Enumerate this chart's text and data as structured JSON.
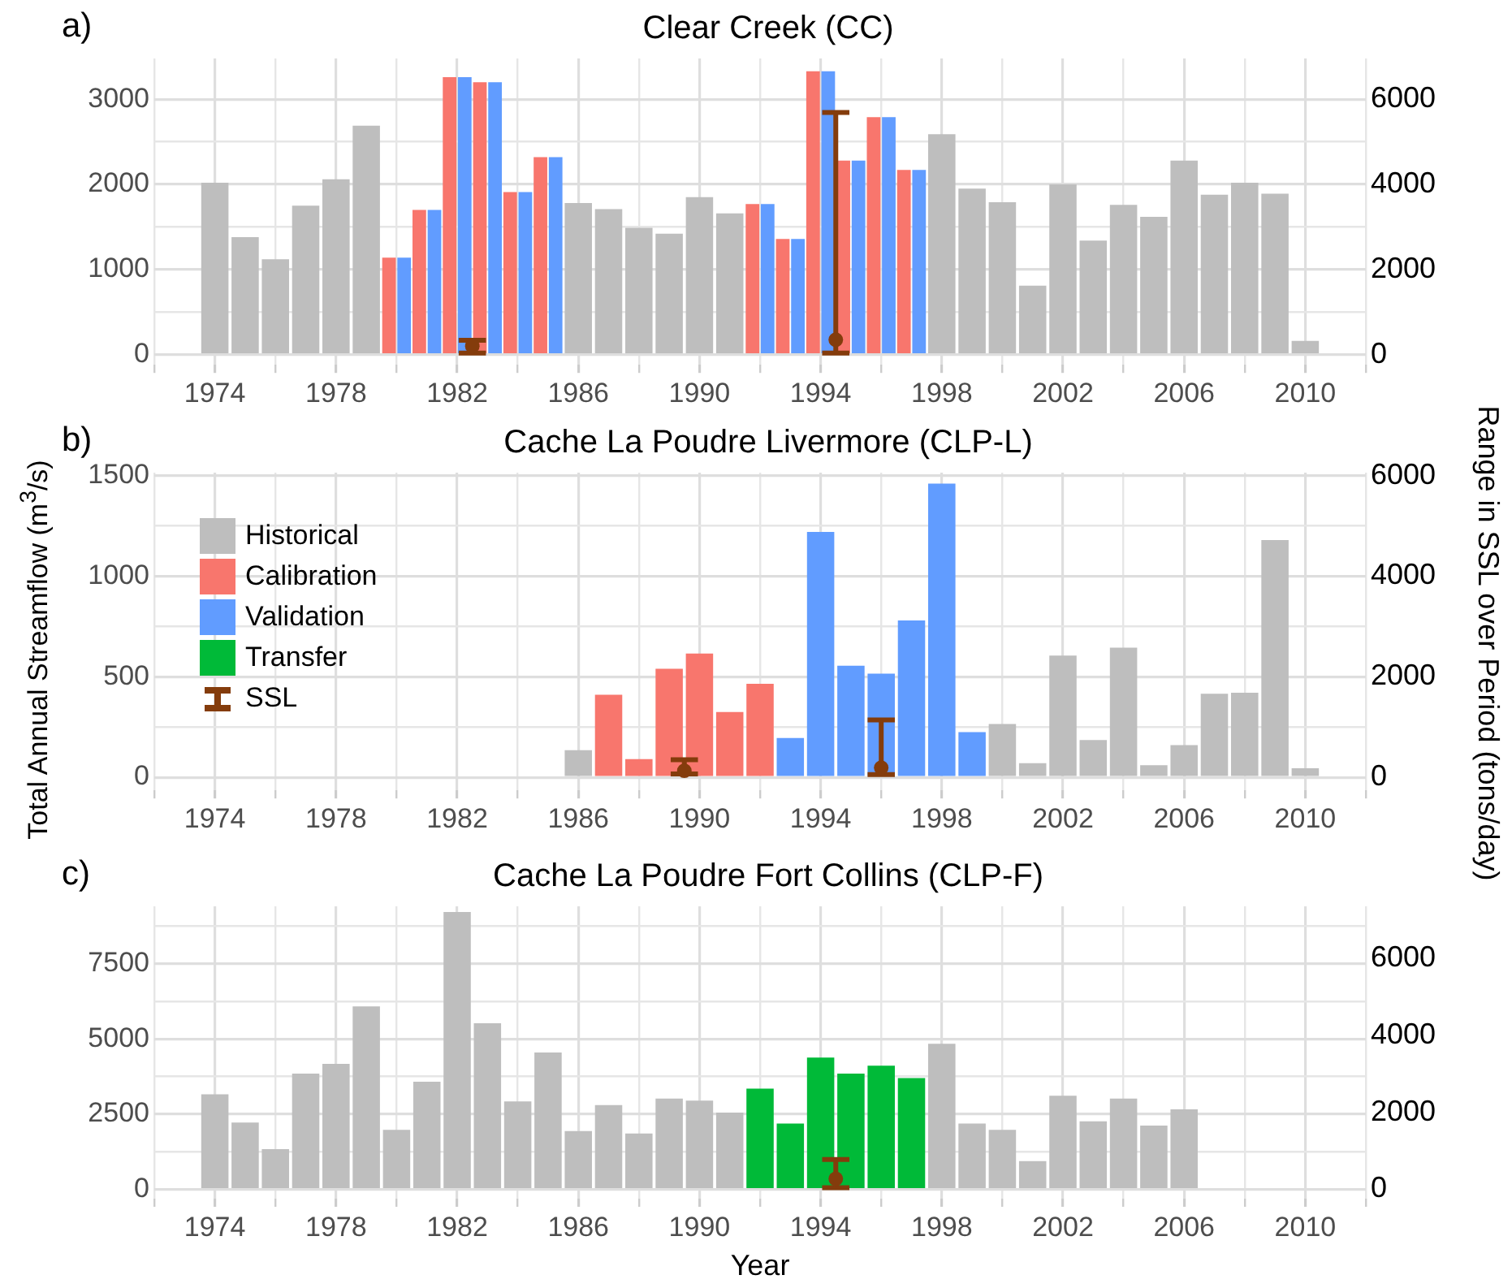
{
  "chart_data": [
    {
      "type": "bar",
      "title": "Clear Creek (CC)",
      "annotations": [
        "a)"
      ],
      "xlim": [
        1972,
        2012
      ],
      "xticks": [
        {
          "value": 1972,
          "label": null
        },
        1974,
        {
          "value": 1976,
          "label": null
        },
        1978,
        {
          "value": 1980,
          "label": null
        },
        1982,
        {
          "value": 1984,
          "label": null
        },
        1986,
        {
          "value": 1988,
          "label": null
        },
        1990,
        {
          "value": 1992,
          "label": null
        },
        1994,
        {
          "value": 1996,
          "label": null
        },
        1998,
        {
          "value": 2000,
          "label": null
        },
        2002,
        {
          "value": 2004,
          "label": null
        },
        2006,
        {
          "value": 2008,
          "label": null
        },
        2010,
        {
          "value": 2012,
          "label": null
        }
      ],
      "ylim": [
        -120,
        3480
      ],
      "yticks": [
        0,
        {
          "value": 500,
          "label": null
        },
        1000,
        {
          "value": 1500,
          "label": null
        },
        2000,
        {
          "value": 2500,
          "label": null
        },
        3000
      ],
      "y2lim": [
        -240,
        6960
      ],
      "y2ticks": [
        0,
        2000,
        4000,
        6000
      ],
      "grid": true,
      "marker": "circle",
      "series": [
        {
          "color": "#bebebe",
          "x": [
            1974,
            1975,
            1976,
            1977,
            1978,
            1979,
            1986,
            1987,
            1988,
            1989,
            1990,
            1991,
            1998,
            1999,
            2000,
            2001,
            2002,
            2003,
            2004,
            2005,
            2006,
            2007,
            2008,
            2009,
            2010
          ],
          "values": [
            2020,
            1380,
            1120,
            1750,
            2060,
            2690,
            1780,
            1710,
            1490,
            1420,
            1850,
            1660,
            2590,
            1950,
            1790,
            810,
            2000,
            1340,
            1760,
            1620,
            2280,
            1880,
            2020,
            1890,
            160
          ]
        },
        {
          "color": "#f8766d",
          "x": [
            1980,
            1981,
            1982,
            1983,
            1984,
            1985,
            1992,
            1993,
            1994,
            1995,
            1996,
            1997
          ],
          "values": [
            1140,
            1700,
            3260,
            3200,
            1910,
            2320,
            1770,
            1360,
            3330,
            2280,
            2790,
            2170
          ]
        },
        {
          "color": "#619cff",
          "x": [
            1980,
            1981,
            1982,
            1983,
            1984,
            1985,
            1992,
            1993,
            1994,
            1995,
            1996,
            1997
          ],
          "values": [
            1140,
            1700,
            3260,
            3200,
            1910,
            2320,
            1770,
            1360,
            3330,
            2280,
            2790,
            2170
          ]
        },
        {
          "type": "scatter",
          "axis": "y2",
          "color": "#843c0c",
          "x": [
            1982.5,
            1994.5
          ],
          "values": [
            200,
            350
          ],
          "errors": [
            [
              37,
              337
            ],
            [
              37,
              5690
            ]
          ]
        }
      ]
    },
    {
      "type": "bar",
      "title": "Cache La Poudre Livermore (CLP-L)",
      "annotations": [
        "b)"
      ],
      "ylabel": "Total Annual Streamflow (m$^{3}$/s)",
      "y2label": "Range in SSL over Period (tons/day)",
      "legend": "top left",
      "xlim": [
        1972,
        2012
      ],
      "xticks": [
        {
          "value": 1972,
          "label": null
        },
        1974,
        {
          "value": 1976,
          "label": null
        },
        1978,
        {
          "value": 1980,
          "label": null
        },
        1982,
        {
          "value": 1984,
          "label": null
        },
        1986,
        {
          "value": 1988,
          "label": null
        },
        1990,
        {
          "value": 1992,
          "label": null
        },
        1994,
        {
          "value": 1996,
          "label": null
        },
        1998,
        {
          "value": 2000,
          "label": null
        },
        2002,
        {
          "value": 2004,
          "label": null
        },
        2006,
        {
          "value": 2008,
          "label": null
        },
        2010,
        {
          "value": 2012,
          "label": null
        }
      ],
      "ylim": [
        -65,
        1515
      ],
      "yticks": [
        0,
        {
          "value": 250,
          "label": null
        },
        500,
        {
          "value": 750,
          "label": null
        },
        1000,
        {
          "value": 1250,
          "label": null
        },
        1500
      ],
      "y2lim": [
        -260,
        6060
      ],
      "y2ticks": [
        0,
        2000,
        4000,
        6000
      ],
      "grid": true,
      "marker": "circle",
      "series": [
        {
          "name": "Historical",
          "color": "#bebebe",
          "x": [
            1986,
            2000,
            2001,
            2002,
            2003,
            2004,
            2005,
            2006,
            2007,
            2008,
            2009,
            2010
          ],
          "values": [
            135,
            265,
            70,
            605,
            185,
            645,
            60,
            160,
            415,
            420,
            1180,
            45
          ]
        },
        {
          "name": "Calibration",
          "color": "#f8766d",
          "x": [
            1987,
            1988,
            1989,
            1990,
            1991,
            1992
          ],
          "values": [
            410,
            90,
            540,
            615,
            325,
            465
          ]
        },
        {
          "name": "Validation",
          "color": "#619cff",
          "x": [
            1993,
            1994,
            1995,
            1996,
            1997,
            1998,
            1999
          ],
          "values": [
            195,
            1220,
            555,
            515,
            780,
            1460,
            225
          ]
        },
        {
          "name": "Transfer",
          "color": "#00ba38"
        },
        {
          "type": "scatter",
          "name": "SSL",
          "axis": "y2",
          "color": "#843c0c",
          "x": [
            1989.5,
            1996
          ],
          "values": [
            130,
            190
          ],
          "errors": [
            [
              65,
              350
            ],
            [
              55,
              1140
            ]
          ]
        }
      ]
    },
    {
      "type": "bar",
      "title": "Cache La Poudre Fort Collins (CLP-F)",
      "annotations": [
        "c)"
      ],
      "xlabel": "Year",
      "xlim": [
        1972,
        2012
      ],
      "xticks": [
        {
          "value": 1972,
          "label": null
        },
        1974,
        {
          "value": 1976,
          "label": null
        },
        1978,
        {
          "value": 1980,
          "label": null
        },
        1982,
        {
          "value": 1984,
          "label": null
        },
        1986,
        {
          "value": 1988,
          "label": null
        },
        1990,
        {
          "value": 1992,
          "label": null
        },
        1994,
        {
          "value": 1996,
          "label": null
        },
        1998,
        {
          "value": 2000,
          "label": null
        },
        2002,
        {
          "value": 2004,
          "label": null
        },
        2006,
        {
          "value": 2008,
          "label": null
        },
        2010,
        {
          "value": 2012,
          "label": null
        }
      ],
      "ylim": [
        -310,
        9410
      ],
      "yticks": [
        0,
        {
          "value": 1250,
          "label": null
        },
        2500,
        {
          "value": 3750,
          "label": null
        },
        5000,
        {
          "value": 6250,
          "label": null
        },
        7500,
        {
          "value": 8750,
          "label": null
        }
      ],
      "y2lim": [
        -245,
        7360
      ],
      "y2ticks": [
        0,
        2000,
        4000,
        6000
      ],
      "grid": true,
      "marker": "circle",
      "series": [
        {
          "color": "#bebebe",
          "x": [
            1974,
            1975,
            1976,
            1977,
            1978,
            1979,
            1980,
            1981,
            1982,
            1983,
            1984,
            1985,
            1986,
            1987,
            1988,
            1989,
            1990,
            1991,
            1998,
            1999,
            2000,
            2001,
            2002,
            2003,
            2004,
            2005,
            2006
          ],
          "values": [
            3160,
            2220,
            1340,
            3850,
            4170,
            6080,
            1980,
            3580,
            9220,
            5520,
            2920,
            4550,
            1940,
            2800,
            1860,
            3020,
            2950,
            2550,
            4840,
            2190,
            1980,
            940,
            3110,
            2260,
            3020,
            2120,
            2660
          ]
        },
        {
          "color": "#00ba38",
          "x": [
            1992,
            1993,
            1994,
            1995,
            1996,
            1997
          ],
          "values": [
            3350,
            2190,
            4380,
            3850,
            4110,
            3700
          ]
        },
        {
          "type": "scatter",
          "axis": "y2",
          "color": "#843c0c",
          "x": [
            1994.5
          ],
          "values": [
            270
          ],
          "errors": [
            [
              40,
              775
            ]
          ]
        }
      ]
    }
  ]
}
